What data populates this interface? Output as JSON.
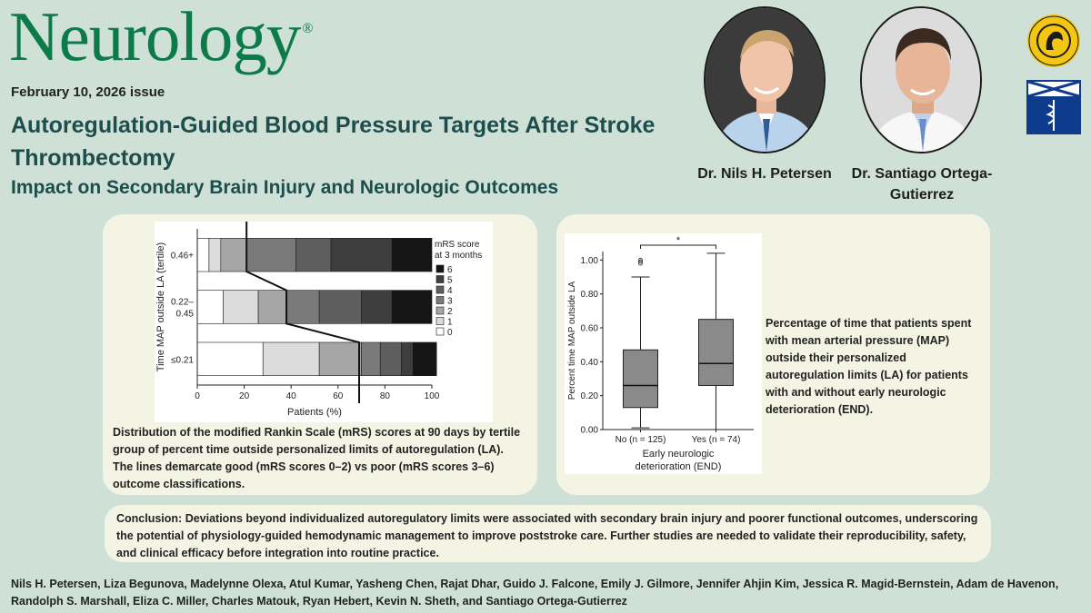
{
  "header": {
    "journal": "Neurology",
    "registered_mark": "®",
    "issue": "February 10, 2026 issue",
    "title": "Autoregulation-Guided Blood Pressure Targets After Stroke Thrombectomy",
    "subtitle": "Impact on Secondary Brain Injury and Neurologic Outcomes"
  },
  "authors_featured": [
    {
      "name": "Dr. Nils H. Petersen"
    },
    {
      "name_line1": "Dr. Santiago Ortega-",
      "name_line2": "Gutierrez"
    }
  ],
  "colors": {
    "background": "#cfe1d6",
    "panel": "#f4f4e4",
    "title": "#1d4d4c",
    "logo": "#0d7a4a"
  },
  "chart_data": [
    {
      "type": "bar",
      "stacked": true,
      "orientation": "horizontal",
      "ylabel": "Time MAP outside LA (tertile)",
      "xlabel": "Patients (%)",
      "categories": [
        "0.46+",
        "0.22–0.45",
        "≤0.21"
      ],
      "category_lines": [
        [
          "0.46+"
        ],
        [
          "0.22–",
          "0.45"
        ],
        [
          "≤0.21"
        ]
      ],
      "xlim": [
        0,
        100
      ],
      "xticks": [
        0,
        20,
        40,
        60,
        80,
        100
      ],
      "legend_title": [
        "mRS score",
        "at 3 months"
      ],
      "series": [
        {
          "name": "0",
          "color": "#ffffff",
          "values": [
            5,
            11,
            28
          ]
        },
        {
          "name": "1",
          "color": "#dcdcdc",
          "values": [
            5,
            15,
            24
          ]
        },
        {
          "name": "2",
          "color": "#a6a6a6",
          "values": [
            11,
            12,
            18
          ]
        },
        {
          "name": "3",
          "color": "#7a7a7a",
          "values": [
            21,
            14,
            8
          ]
        },
        {
          "name": "4",
          "color": "#5e5e5e",
          "values": [
            15,
            18,
            9
          ]
        },
        {
          "name": "5",
          "color": "#3e3e3e",
          "values": [
            26,
            13,
            5
          ]
        },
        {
          "name": "6",
          "color": "#151515",
          "values": [
            17,
            17,
            10
          ]
        }
      ],
      "legend_order": [
        "6",
        "5",
        "4",
        "3",
        "2",
        "1",
        "0"
      ],
      "good_poor_cutoffs": [
        21,
        38,
        69
      ]
    },
    {
      "type": "boxplot",
      "ylabel": "Percent time MAP outside LA",
      "xlabel": [
        "Early neurologic",
        "deterioration (END)"
      ],
      "categories": [
        "No (n = 125)",
        "Yes (n = 74)"
      ],
      "ylim": [
        0,
        1.05
      ],
      "yticks": [
        "0.00",
        "0.20",
        "0.40",
        "0.60",
        "0.80",
        "1.00"
      ],
      "boxes": [
        {
          "whisker_low": 0.01,
          "q1": 0.13,
          "median": 0.26,
          "q3": 0.47,
          "whisker_high": 0.9,
          "outliers": [
            0.98,
            0.99,
            1.0
          ]
        },
        {
          "whisker_low": 0.0,
          "q1": 0.26,
          "median": 0.39,
          "q3": 0.65,
          "whisker_high": 1.04,
          "outliers": []
        }
      ],
      "significance": "*"
    }
  ],
  "captions": {
    "left": "Distribution of the modified Rankin Scale (mRS) scores at 90 days by tertile group of percent time outside personalized limits of autoregulation (LA).  The lines demarcate good (mRS scores 0–2) vs poor (mRS scores 3–6) outcome classifications.",
    "right": "Percentage of time that patients spent with mean arterial pressure (MAP) outside their personalized autoregulation limits (LA) for patients with and without early neurologic deterioration (END)."
  },
  "conclusion": "Conclusion: Deviations beyond individualized autoregulatory limits were associated with secondary brain injury and poorer functional outcomes, underscoring the potential of physiology-guided hemodynamic management to improve poststroke care.  Further studies are needed to validate their reproducibility, safety, and clinical efficacy before integration into routine practice.",
  "authors": "Nils H. Petersen, Liza Begunova, Madelynne Olexa, Atul Kumar, Yasheng Chen, Rajat Dhar, Guido J. Falcone, Emily J. Gilmore, Jennifer Ahjin Kim, Jessica R. Magid-Bernstein, Adam de Havenon, Randolph S. Marshall, Eliza C. Miller, Charles Matouk, Ryan Hebert, Kevin N. Sheth, and Santiago Ortega-Gutierrez"
}
